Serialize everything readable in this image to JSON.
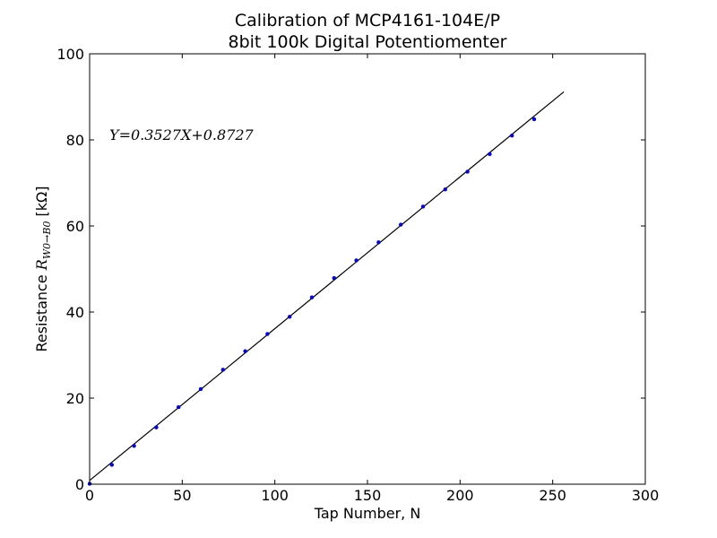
{
  "chart_data": {
    "type": "scatter",
    "title": "Calibration of MCP4161-104E/P",
    "subtitle": "8bit 100k Digital Potentiomenter",
    "xlabel": "Tap Number, N",
    "ylabel_prefix": "Resistance ",
    "ylabel_var": "R",
    "ylabel_sub": "W0→B0",
    "ylabel_unit": " [kΩ]",
    "xlim": [
      0,
      300
    ],
    "ylim": [
      0,
      100
    ],
    "xticks": [
      0,
      50,
      100,
      150,
      200,
      250,
      300
    ],
    "yticks": [
      0,
      20,
      40,
      60,
      80,
      100
    ],
    "grid": false,
    "annotation": "Y=0.3527X+0.8727",
    "series": [
      {
        "kind": "points",
        "color": "#0000ff",
        "x": [
          0,
          12,
          24,
          36,
          48,
          60,
          72,
          84,
          96,
          108,
          120,
          132,
          144,
          156,
          168,
          180,
          192,
          204,
          216,
          228,
          240
        ],
        "y": [
          0.1,
          4.5,
          8.9,
          13.2,
          17.9,
          22.1,
          26.6,
          30.9,
          34.9,
          38.9,
          43.4,
          47.9,
          52.0,
          56.2,
          60.3,
          64.5,
          68.5,
          72.6,
          76.7,
          81.0,
          84.8
        ]
      },
      {
        "kind": "fit",
        "color": "#000000",
        "slope": 0.3527,
        "intercept": 0.8727,
        "x_range": [
          0,
          256
        ]
      }
    ]
  }
}
